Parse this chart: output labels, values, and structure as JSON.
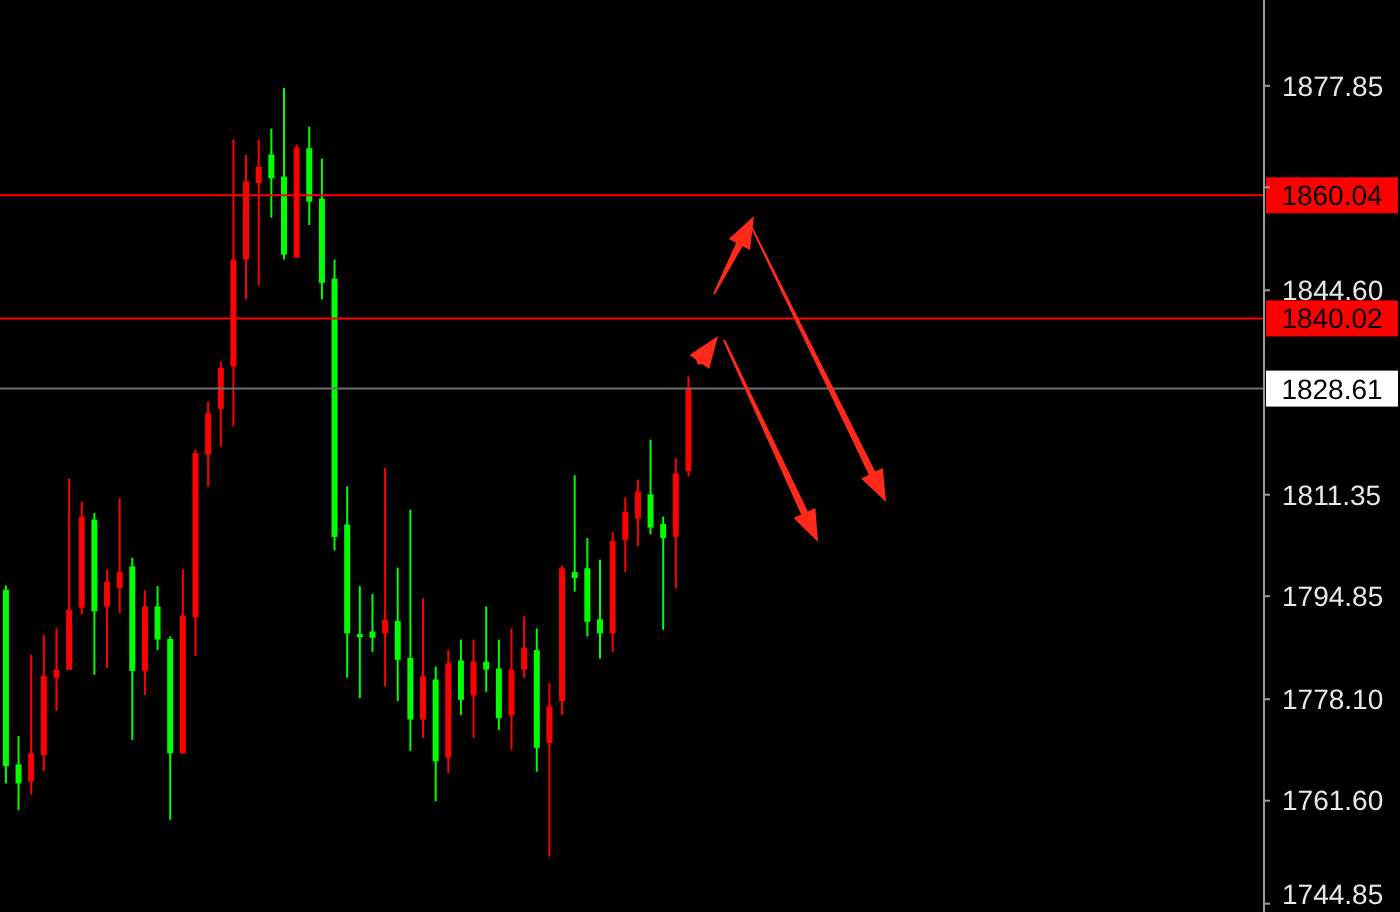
{
  "chart_data": {
    "type": "candlestick",
    "categories": [
      null,
      null,
      null,
      null,
      null,
      null,
      null,
      null,
      null,
      null,
      null,
      null,
      null,
      null,
      null,
      null,
      null,
      null,
      null,
      null,
      null,
      null,
      null,
      null,
      null,
      null,
      null,
      null,
      null,
      null,
      null,
      null,
      null,
      null,
      null,
      null,
      null,
      null,
      null,
      null,
      null,
      null,
      null,
      null,
      null,
      null,
      null,
      null,
      null,
      null,
      null,
      null,
      null,
      null,
      null,
      null,
      null,
      null,
      null,
      null,
      null,
      null,
      null,
      null,
      null,
      null,
      null,
      null,
      null,
      null,
      null,
      null,
      null,
      null,
      null,
      null,
      null,
      null,
      null,
      null,
      null,
      null,
      null,
      null,
      null,
      null,
      null,
      null,
      null,
      null,
      null,
      null,
      null,
      null,
      null,
      null,
      null,
      null,
      null,
      null
    ],
    "ohlc": [
      [
        1795.9,
        1796.6,
        1764.4,
        1767.2
      ],
      [
        1767.5,
        1772.1,
        1760.1,
        1764.4
      ],
      [
        1764.7,
        1785.3,
        1762.6,
        1769.3
      ],
      [
        1769.0,
        1788.5,
        1766.4,
        1781.9
      ],
      [
        1781.6,
        1789.6,
        1776.2,
        1782.9
      ],
      [
        1782.9,
        1814.0,
        1782.9,
        1792.6
      ],
      [
        1793.0,
        1810.2,
        1791.9,
        1807.8
      ],
      [
        1807.3,
        1808.4,
        1782.1,
        1792.4
      ],
      [
        1793.2,
        1799.2,
        1783.2,
        1797.2
      ],
      [
        1796.2,
        1810.8,
        1792.1,
        1798.8
      ],
      [
        1799.7,
        1801.1,
        1771.5,
        1782.7
      ],
      [
        1782.7,
        1795.8,
        1778.8,
        1793.2
      ],
      [
        1793.2,
        1796.5,
        1786.1,
        1787.8
      ],
      [
        1787.9,
        1788.3,
        1758.5,
        1769.3
      ],
      [
        1769.3,
        1799.2,
        1769.3,
        1791.7
      ],
      [
        1791.4,
        1818.7,
        1785.1,
        1818.1
      ],
      [
        1817.9,
        1826.5,
        1812.7,
        1824.6
      ],
      [
        1825.3,
        1833.0,
        1819.2,
        1832.0
      ],
      [
        1832.2,
        1869.1,
        1822.5,
        1849.6
      ],
      [
        1849.6,
        1866.6,
        1843.1,
        1862.3
      ],
      [
        1862.0,
        1869.1,
        1845.4,
        1864.7
      ],
      [
        1866.7,
        1870.9,
        1856.4,
        1862.8
      ],
      [
        1863.1,
        1877.5,
        1849.6,
        1850.4
      ],
      [
        1849.9,
        1868.3,
        1849.9,
        1867.8
      ],
      [
        1867.7,
        1871.2,
        1855.2,
        1859.0
      ],
      [
        1859.5,
        1866.0,
        1843.1,
        1845.8
      ],
      [
        1846.5,
        1849.6,
        1802.3,
        1804.5
      ],
      [
        1806.5,
        1812.7,
        1781.6,
        1788.8
      ],
      [
        1788.7,
        1796.5,
        1778.3,
        1788.2
      ],
      [
        1789.1,
        1795.2,
        1785.8,
        1788.1
      ],
      [
        1788.8,
        1815.7,
        1780.2,
        1791.0
      ],
      [
        1790.8,
        1799.5,
        1777.8,
        1784.5
      ],
      [
        1784.8,
        1808.9,
        1769.7,
        1774.8
      ],
      [
        1774.8,
        1794.5,
        1771.8,
        1781.8
      ],
      [
        1781.3,
        1783.4,
        1761.5,
        1768.0
      ],
      [
        1768.6,
        1786.1,
        1766.1,
        1783.9
      ],
      [
        1784.4,
        1787.8,
        1775.5,
        1778.0
      ],
      [
        1778.7,
        1787.8,
        1771.8,
        1784.2
      ],
      [
        1784.2,
        1793.2,
        1779.3,
        1782.9
      ],
      [
        1783.1,
        1787.8,
        1773.1,
        1775.0
      ],
      [
        1775.5,
        1789.6,
        1769.9,
        1782.9
      ],
      [
        1782.9,
        1791.6,
        1781.6,
        1786.5
      ],
      [
        1786.1,
        1789.6,
        1766.3,
        1770.2
      ],
      [
        1771.0,
        1780.7,
        1752.5,
        1776.9
      ],
      [
        1777.8,
        1799.8,
        1775.5,
        1799.4
      ],
      [
        1798.8,
        1814.5,
        1795.6,
        1797.8
      ],
      [
        1799.4,
        1804.3,
        1788.3,
        1790.7
      ],
      [
        1791.1,
        1800.8,
        1784.7,
        1788.8
      ],
      [
        1788.8,
        1805.3,
        1785.8,
        1803.8
      ],
      [
        1804.0,
        1810.9,
        1798.8,
        1808.6
      ],
      [
        1807.5,
        1813.8,
        1803.0,
        1811.9
      ],
      [
        1811.4,
        1820.3,
        1804.9,
        1806.0
      ],
      [
        1806.6,
        1807.8,
        1789.4,
        1804.3
      ],
      [
        1804.5,
        1817.3,
        1796.1,
        1814.8
      ],
      [
        1815.2,
        1830.6,
        1814.3,
        1828.61
      ],
      null,
      null,
      null,
      null,
      null,
      null,
      null,
      null,
      null,
      null,
      null,
      null,
      null,
      null,
      null,
      null,
      null,
      null,
      null,
      null,
      null,
      null,
      null,
      null,
      null,
      null,
      null,
      null,
      null,
      null,
      null,
      null,
      null,
      null,
      null,
      null,
      null,
      null,
      null,
      null,
      null,
      null,
      null,
      null,
      null
    ],
    "colors": [
      "#00ff00",
      "#00ff00",
      "#ff0000",
      "#ff0000",
      "#ff0000",
      "#ff0000",
      "#ff0000",
      "#00ff00",
      "#ff0000",
      "#ff0000",
      "#00ff00",
      "#ff0000",
      "#00ff00",
      "#00ff00",
      "#ff0000",
      "#ff0000",
      "#ff0000",
      "#ff0000",
      "#ff0000",
      "#ff0000",
      "#ff0000",
      "#00ff00",
      "#00ff00",
      "#ff0000",
      "#00ff00",
      "#00ff00",
      "#00ff00",
      "#00ff00",
      "#00ff00",
      "#00ff00",
      "#ff0000",
      "#00ff00",
      "#00ff00",
      "#ff0000",
      "#00ff00",
      "#ff0000",
      "#00ff00",
      "#ff0000",
      "#00ff00",
      "#00ff00",
      "#ff0000",
      "#ff0000",
      "#00ff00",
      "#ff0000",
      "#ff0000",
      "#00ff00",
      "#00ff00",
      "#00ff00",
      "#ff0000",
      "#ff0000",
      "#ff0000",
      "#00ff00",
      "#00ff00",
      "#ff0000",
      "#ff0000",
      null,
      null,
      null,
      null,
      null,
      null,
      null,
      null,
      null,
      null,
      null,
      null,
      null,
      null,
      null,
      null,
      null,
      null,
      null,
      null,
      null,
      null,
      null,
      null,
      null,
      null,
      null,
      null,
      null,
      null,
      null,
      null,
      null,
      null,
      null,
      null,
      null,
      null,
      null,
      null,
      null,
      null,
      null,
      null,
      null
    ],
    "ylim": [
      1743.5,
      1891.8
    ],
    "yticks": [
      1877.85,
      {
        "value": 1861.35,
        "label": null
      },
      {
        "value": 1844.6,
        "label": "1844.60"
      },
      1811.35,
      1794.85,
      {
        "value": 1778.1,
        "label": "1778.10"
      },
      {
        "value": 1761.6,
        "label": "1761.60"
      },
      1744.85
    ],
    "ref_lines": [
      {
        "axis": "y",
        "value": 1860.04,
        "label": "1860.04",
        "color": "#ff0000"
      },
      {
        "axis": "y",
        "value": 1840.02,
        "label": "1840.02",
        "color": "#ff0000"
      },
      {
        "axis": "y",
        "value": 1828.61,
        "label": "1828.61",
        "color": "#6b7075"
      }
    ],
    "tick_labels": "y",
    "grid": false,
    "legend": false
  }
}
